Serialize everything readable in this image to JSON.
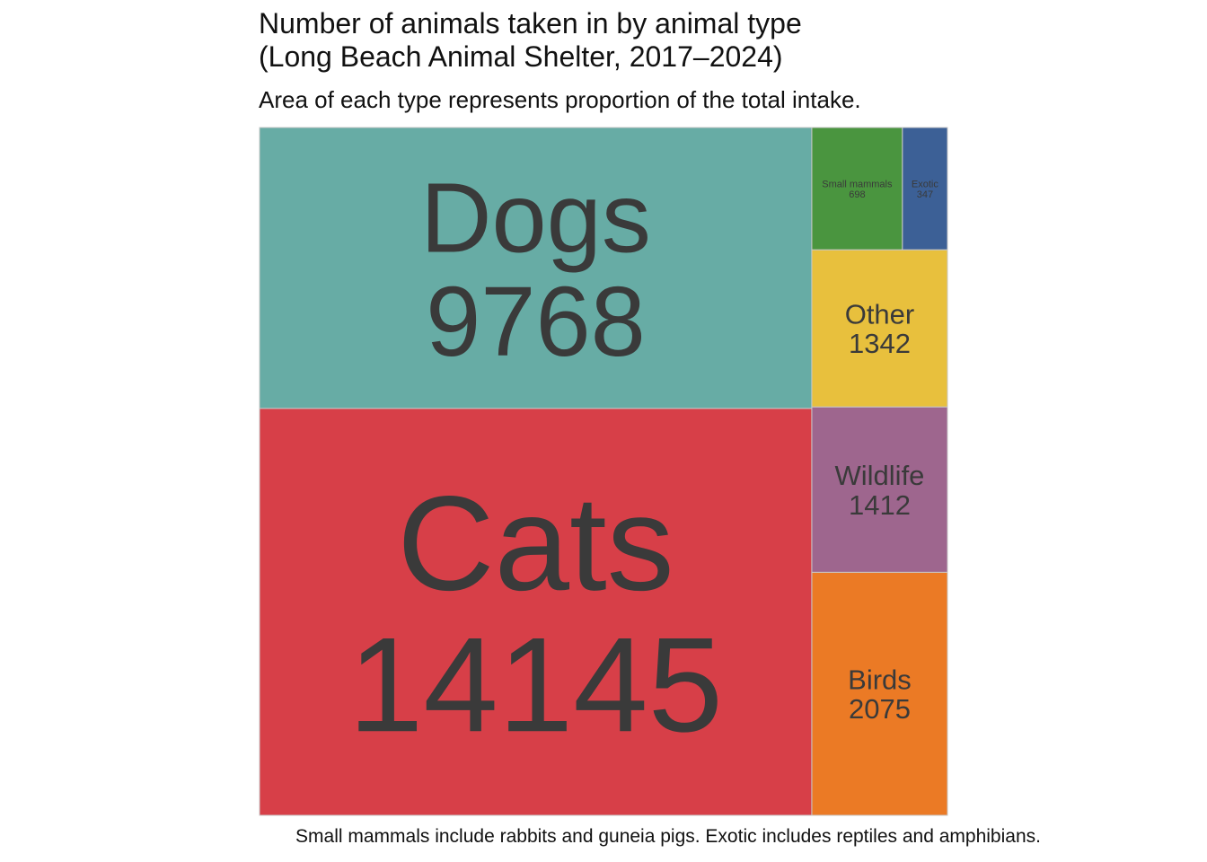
{
  "chart_data": {
    "type": "treemap",
    "title": "Number of animals taken in by animal type\n(Long Beach Animal Shelter, 2017–2024)",
    "subtitle": "Area of each type represents proportion of the total intake.",
    "caption": "Small mammals include rabbits and guneia pigs. Exotic includes reptiles and amphibians.",
    "categories": [
      "Cats",
      "Dogs",
      "Birds",
      "Wildlife",
      "Other",
      "Small mammals",
      "Exotic"
    ],
    "values": [
      14145,
      9768,
      2075,
      1412,
      1342,
      698,
      347
    ],
    "colors": {
      "Cats": "#d73f48",
      "Dogs": "#67aca5",
      "Birds": "#eb7a25",
      "Wildlife": "#9e668e",
      "Other": "#e8c03d",
      "Small mammals": "#4a953f",
      "Exotic": "#3c6096"
    }
  }
}
